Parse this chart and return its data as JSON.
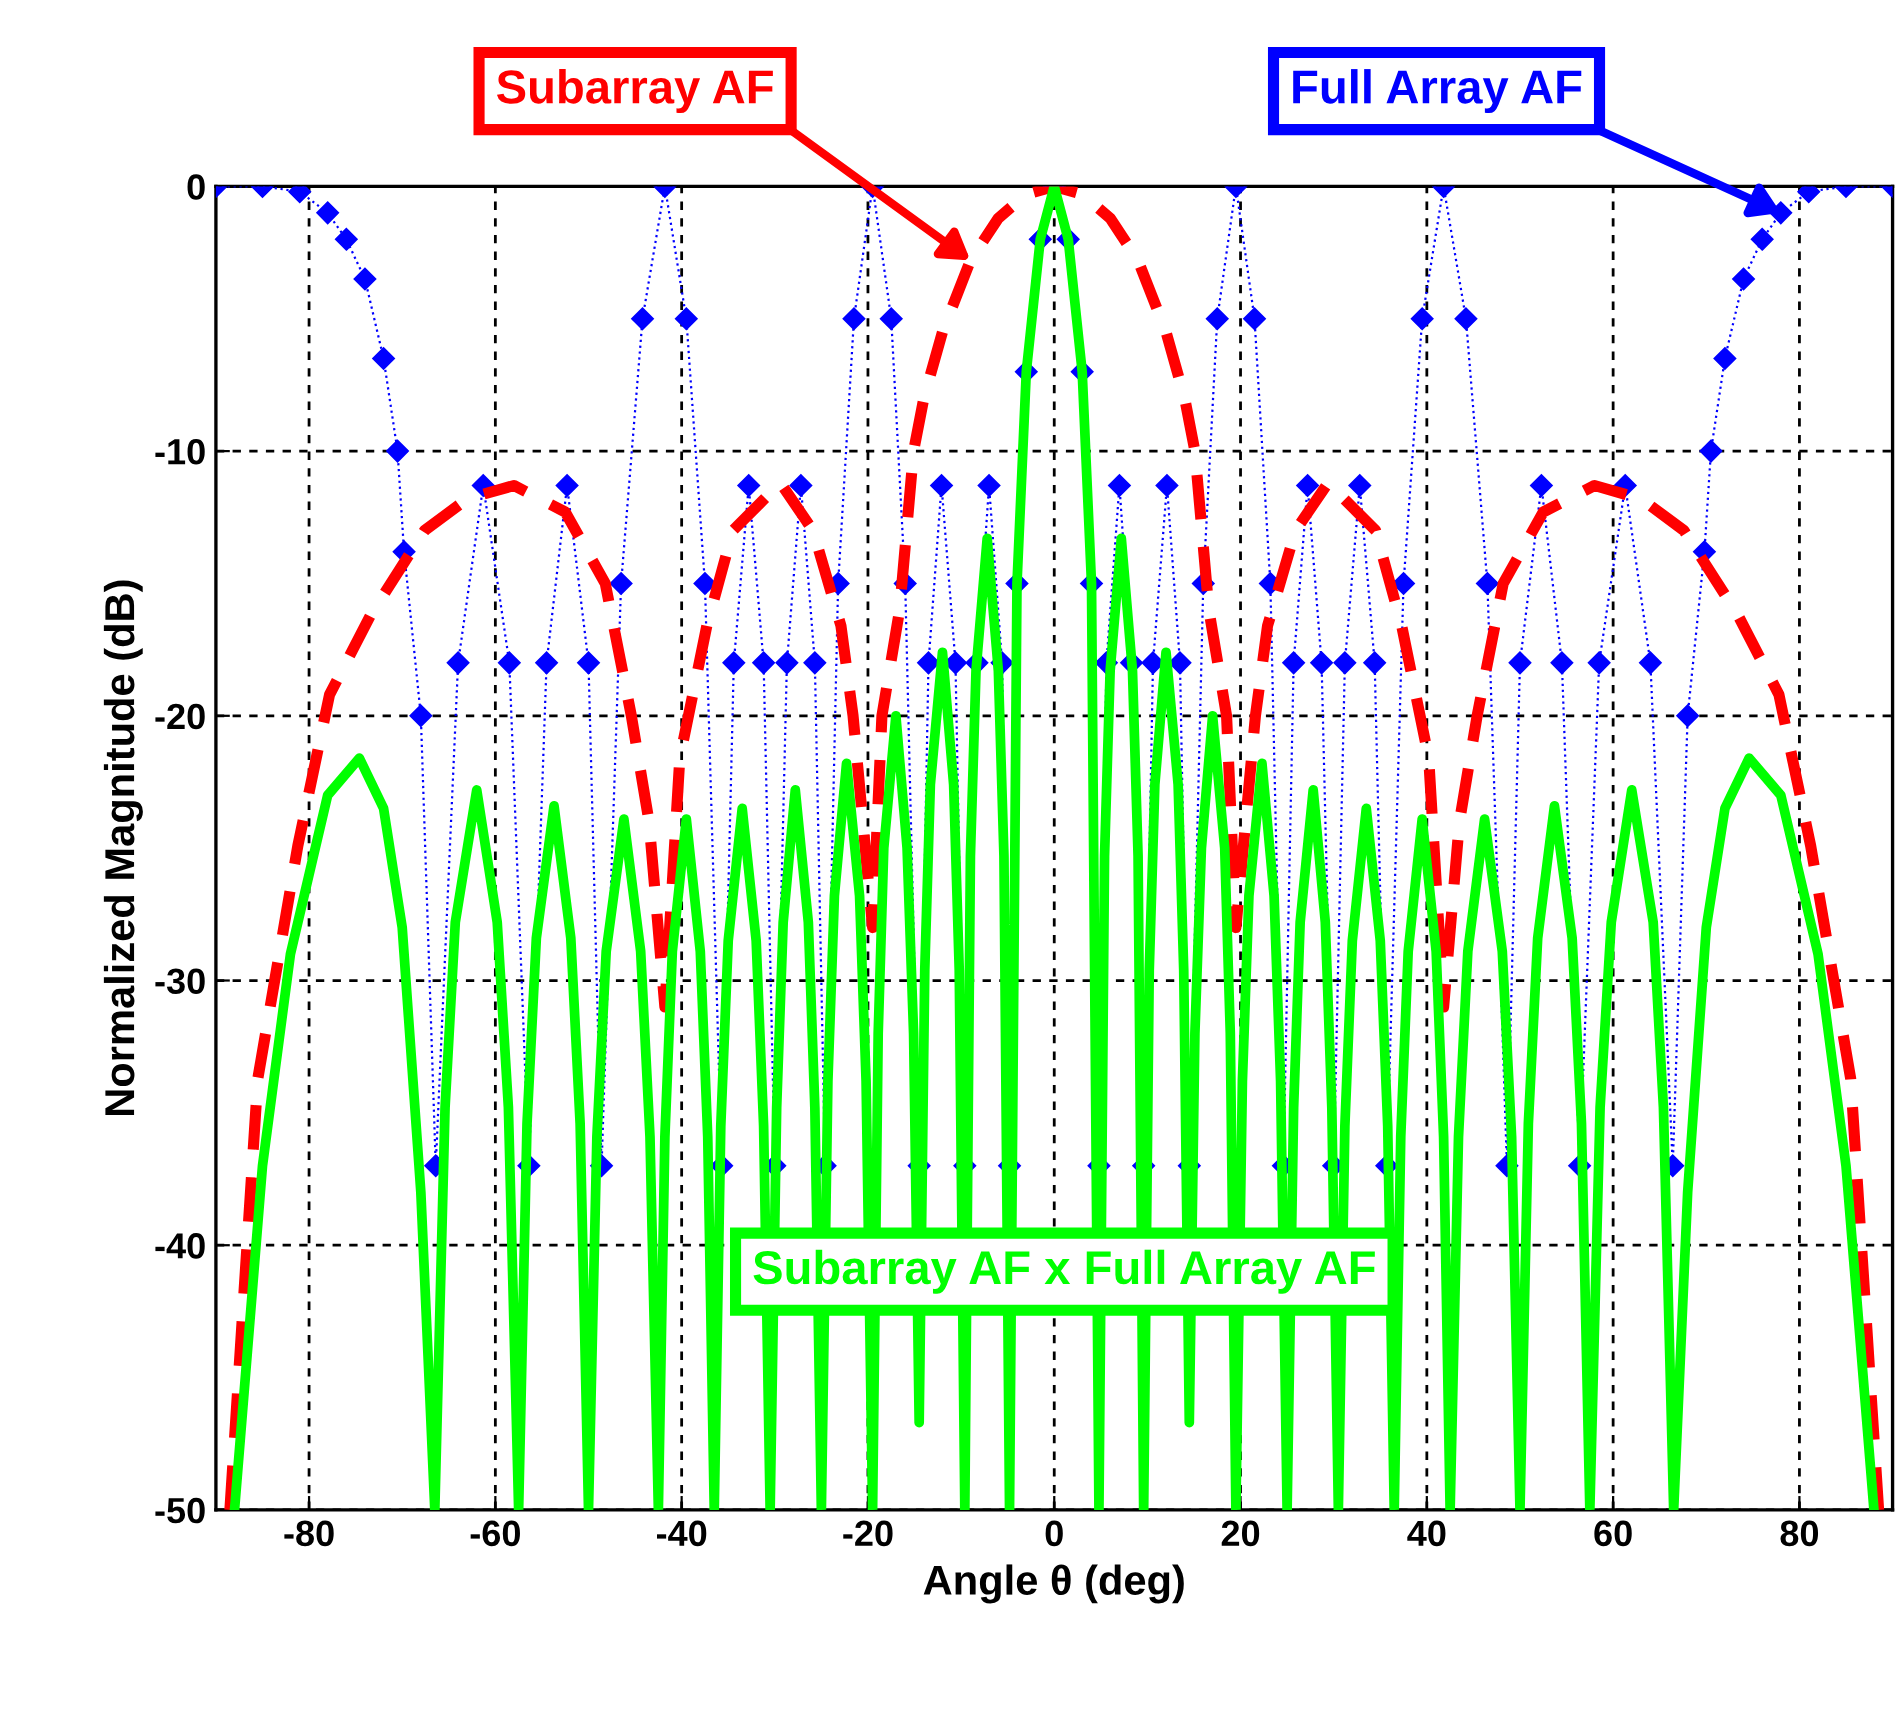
{
  "chart_data": {
    "type": "line",
    "xlabel": "Angle θ (deg)",
    "ylabel": "Normalized Magnitude (dB)",
    "xlim": [
      -90,
      90
    ],
    "xticks": [
      -80,
      -60,
      -40,
      -20,
      0,
      20,
      40,
      60,
      80
    ],
    "ylim": [
      -50,
      0
    ],
    "yticks": [
      -50,
      -40,
      -30,
      -20,
      -10,
      0
    ],
    "grid": true,
    "legend": false,
    "series": [
      {
        "name": "Full Array AF",
        "color": "#0000ff",
        "marker": "diamond",
        "line_style": "dotted",
        "x": [
          -90,
          -85,
          -81,
          -78,
          -76,
          -74,
          -72,
          -70.5,
          -69.8,
          -68,
          -66.4,
          -64,
          -61.3,
          -58.5,
          -56.4,
          -54.5,
          -52.3,
          -50,
          -48.6,
          -46.5,
          -44.2,
          -41.8,
          -39.5,
          -37.5,
          -35.7,
          -34.4,
          -32.8,
          -31.2,
          -30,
          -28.7,
          -27.2,
          -25.7,
          -24.6,
          -23.2,
          -21.5,
          -19.5,
          -17.5,
          -16,
          -14.5,
          -13.5,
          -12.1,
          -10.6,
          -9.6,
          -8.3,
          -7,
          -5.6,
          -4.8,
          -4,
          -3,
          -1.5,
          0,
          1.5,
          3,
          4,
          4.8,
          5.6,
          7,
          8.3,
          9.6,
          10.6,
          12.1,
          13.5,
          14.5,
          16,
          17.5,
          19.5,
          21.5,
          23.2,
          24.6,
          25.7,
          27.2,
          28.7,
          30,
          31.2,
          32.8,
          34.4,
          35.7,
          37.5,
          39.5,
          41.8,
          44.2,
          46.5,
          48.6,
          50,
          52.3,
          54.5,
          56.4,
          58.5,
          61.3,
          64,
          66.4,
          68,
          69.8,
          70.5,
          72,
          74,
          76,
          78,
          81,
          85,
          90
        ],
        "values": [
          0,
          0,
          -0.2,
          -1,
          -2,
          -3.5,
          -6.5,
          -10,
          -13.8,
          -20,
          -37,
          -18,
          -11.3,
          -18,
          -37,
          -18,
          -11.3,
          -18,
          -37,
          -15,
          -5,
          0,
          -5,
          -15,
          -37,
          -18,
          -11.3,
          -18,
          -37,
          -18,
          -11.3,
          -18,
          -37,
          -15,
          -5,
          0,
          -5,
          -15,
          -37,
          -18,
          -11.3,
          -18,
          -37,
          -18,
          -11.3,
          -18,
          -37,
          -15,
          -7,
          -2,
          0,
          -2,
          -7,
          -15,
          -37,
          -18,
          -11.3,
          -18,
          -37,
          -18,
          -11.3,
          -18,
          -37,
          -15,
          -5,
          0,
          -5,
          -15,
          -37,
          -18,
          -11.3,
          -18,
          -37,
          -18,
          -11.3,
          -18,
          -37,
          -15,
          -5,
          0,
          -5,
          -15,
          -37,
          -18,
          -11.3,
          -18,
          -37,
          -18,
          -11.3,
          -18,
          -37,
          -20,
          -13.8,
          -10,
          -6.5,
          -3.5,
          -2,
          -1,
          -0.2,
          0,
          0
        ]
      },
      {
        "name": "Subarray AF",
        "color": "#ff0000",
        "marker": "none",
        "line_style": "dashed",
        "x": [
          -88.5,
          -85.5,
          -81.2,
          -77.8,
          -73.4,
          -67.6,
          -63,
          -58,
          -52.5,
          -48.2,
          -45.4,
          -43.5,
          -41.8,
          -40.2,
          -37.3,
          -34.5,
          -29.4,
          -25.9,
          -22.9,
          -21.6,
          -19.5,
          -18.5,
          -16.6,
          -15.1,
          -14,
          -12,
          -9,
          -6,
          -3,
          0,
          3,
          6,
          9,
          12,
          14,
          15.1,
          16.6,
          18.5,
          19.5,
          21.6,
          22.9,
          25.9,
          29.4,
          34.5,
          37.3,
          40.2,
          41.8,
          43.5,
          45.4,
          48.2,
          52.5,
          58,
          63,
          67.6,
          73.4,
          77.8,
          81.2,
          85.5,
          88.5
        ],
        "values": [
          -50,
          -33.7,
          -24.9,
          -19.2,
          -16.2,
          -13,
          -11.8,
          -11.3,
          -12.3,
          -15,
          -20,
          -24,
          -31,
          -21.6,
          -16.6,
          -13,
          -11.2,
          -13,
          -16.6,
          -20,
          -28,
          -20,
          -16,
          -10,
          -8,
          -5.5,
          -2.8,
          -1.2,
          -0.3,
          0,
          -0.3,
          -1.2,
          -2.8,
          -5.5,
          -8,
          -10,
          -16,
          -20,
          -28,
          -20,
          -16.6,
          -13,
          -11.2,
          -13,
          -16.6,
          -21.6,
          -31,
          -24,
          -20,
          -15,
          -12.3,
          -11.3,
          -11.8,
          -13,
          -16.2,
          -19.2,
          -24.9,
          -33.7,
          -50
        ]
      },
      {
        "name": "Subarray AF x Full Array AF",
        "color": "#00ff00",
        "marker": "none",
        "line_style": "solid",
        "x": [
          -88,
          -85,
          -82,
          -80,
          -78,
          -74.6,
          -72,
          -70,
          -68,
          -66.5,
          -65.4,
          -64.3,
          -62,
          -59.8,
          -58.6,
          -57.5,
          -56.6,
          -55.6,
          -53.7,
          -51.9,
          -50.9,
          -50,
          -49.1,
          -48.1,
          -46.2,
          -44.4,
          -43.4,
          -42.5,
          -41.8,
          -41,
          -39.5,
          -38,
          -37.2,
          -36.5,
          -35.8,
          -35,
          -33.5,
          -32,
          -31.2,
          -30.5,
          -29.8,
          -29.1,
          -27.8,
          -26.4,
          -25.7,
          -25,
          -24.3,
          -23.6,
          -22.3,
          -20.9,
          -20.2,
          -19.5,
          -18.9,
          -18.3,
          -17,
          -15.8,
          -15.1,
          -14.5,
          -13.9,
          -13.3,
          -12,
          -10.8,
          -10.2,
          -9.6,
          -9,
          -8.4,
          -7.2,
          -6,
          -5.4,
          -4.8,
          -4,
          -3,
          -1.5,
          0,
          1.5,
          3,
          4,
          4.8,
          5.4,
          6,
          7.2,
          8.4,
          9,
          9.6,
          10.2,
          10.8,
          12,
          13.3,
          13.9,
          14.5,
          15.1,
          15.8,
          17,
          18.3,
          18.9,
          19.5,
          20.2,
          20.9,
          22.3,
          23.6,
          24.3,
          25,
          25.7,
          26.4,
          27.8,
          29.1,
          29.8,
          30.5,
          31.2,
          32,
          33.5,
          35,
          35.8,
          36.5,
          37.2,
          38,
          39.5,
          41,
          41.8,
          42.5,
          43.4,
          44.4,
          46.2,
          48.1,
          49.1,
          50,
          50.9,
          51.9,
          53.7,
          55.6,
          56.6,
          57.5,
          58.6,
          59.8,
          62,
          64.3,
          65.4,
          66.5,
          68,
          70,
          72,
          74.6,
          78,
          80,
          82,
          85,
          88
        ],
        "values": [
          -50,
          -37,
          -29,
          -26,
          -23,
          -21.6,
          -23.5,
          -28,
          -38,
          -50,
          -34.8,
          -27.8,
          -22.8,
          -27.8,
          -34.8,
          -50,
          -35.4,
          -28.4,
          -23.4,
          -28.4,
          -35.4,
          -50,
          -35.9,
          -28.9,
          -23.9,
          -28.9,
          -35.9,
          -50,
          -35.9,
          -28.9,
          -23.9,
          -28.9,
          -35.9,
          -50,
          -35.5,
          -28.5,
          -23.5,
          -28.5,
          -35.5,
          -50,
          -34.8,
          -27.8,
          -22.8,
          -27.8,
          -34.8,
          -50,
          -33.8,
          -26.8,
          -21.8,
          -26.8,
          -33.8,
          -50,
          -32,
          -25,
          -20,
          -25,
          -32,
          -46.7,
          -29.6,
          -22.6,
          -17.6,
          -22.6,
          -29.6,
          -50,
          -25.3,
          -18.3,
          -13.3,
          -18.3,
          -25.3,
          -50,
          -15,
          -7,
          -2,
          0,
          -2,
          -7,
          -15,
          -50,
          -25.3,
          -18.3,
          -13.3,
          -18.3,
          -25.3,
          -50,
          -29.6,
          -22.6,
          -17.6,
          -22.6,
          -29.6,
          -46.7,
          -32,
          -25,
          -20,
          -25,
          -32,
          -50,
          -33.8,
          -26.8,
          -21.8,
          -26.8,
          -33.8,
          -50,
          -34.8,
          -27.8,
          -22.8,
          -27.8,
          -34.8,
          -50,
          -35.5,
          -28.5,
          -23.5,
          -28.5,
          -35.5,
          -50,
          -35.9,
          -28.9,
          -23.9,
          -28.9,
          -35.9,
          -50,
          -35.9,
          -28.9,
          -23.9,
          -28.9,
          -35.9,
          -50,
          -35.4,
          -28.4,
          -23.4,
          -28.4,
          -35.4,
          -50,
          -34.8,
          -27.8,
          -22.8,
          -27.8,
          -34.8,
          -50,
          -38,
          -28,
          -23.5,
          -21.6,
          -23,
          -26,
          -29,
          -37,
          -50
        ]
      }
    ]
  }
}
